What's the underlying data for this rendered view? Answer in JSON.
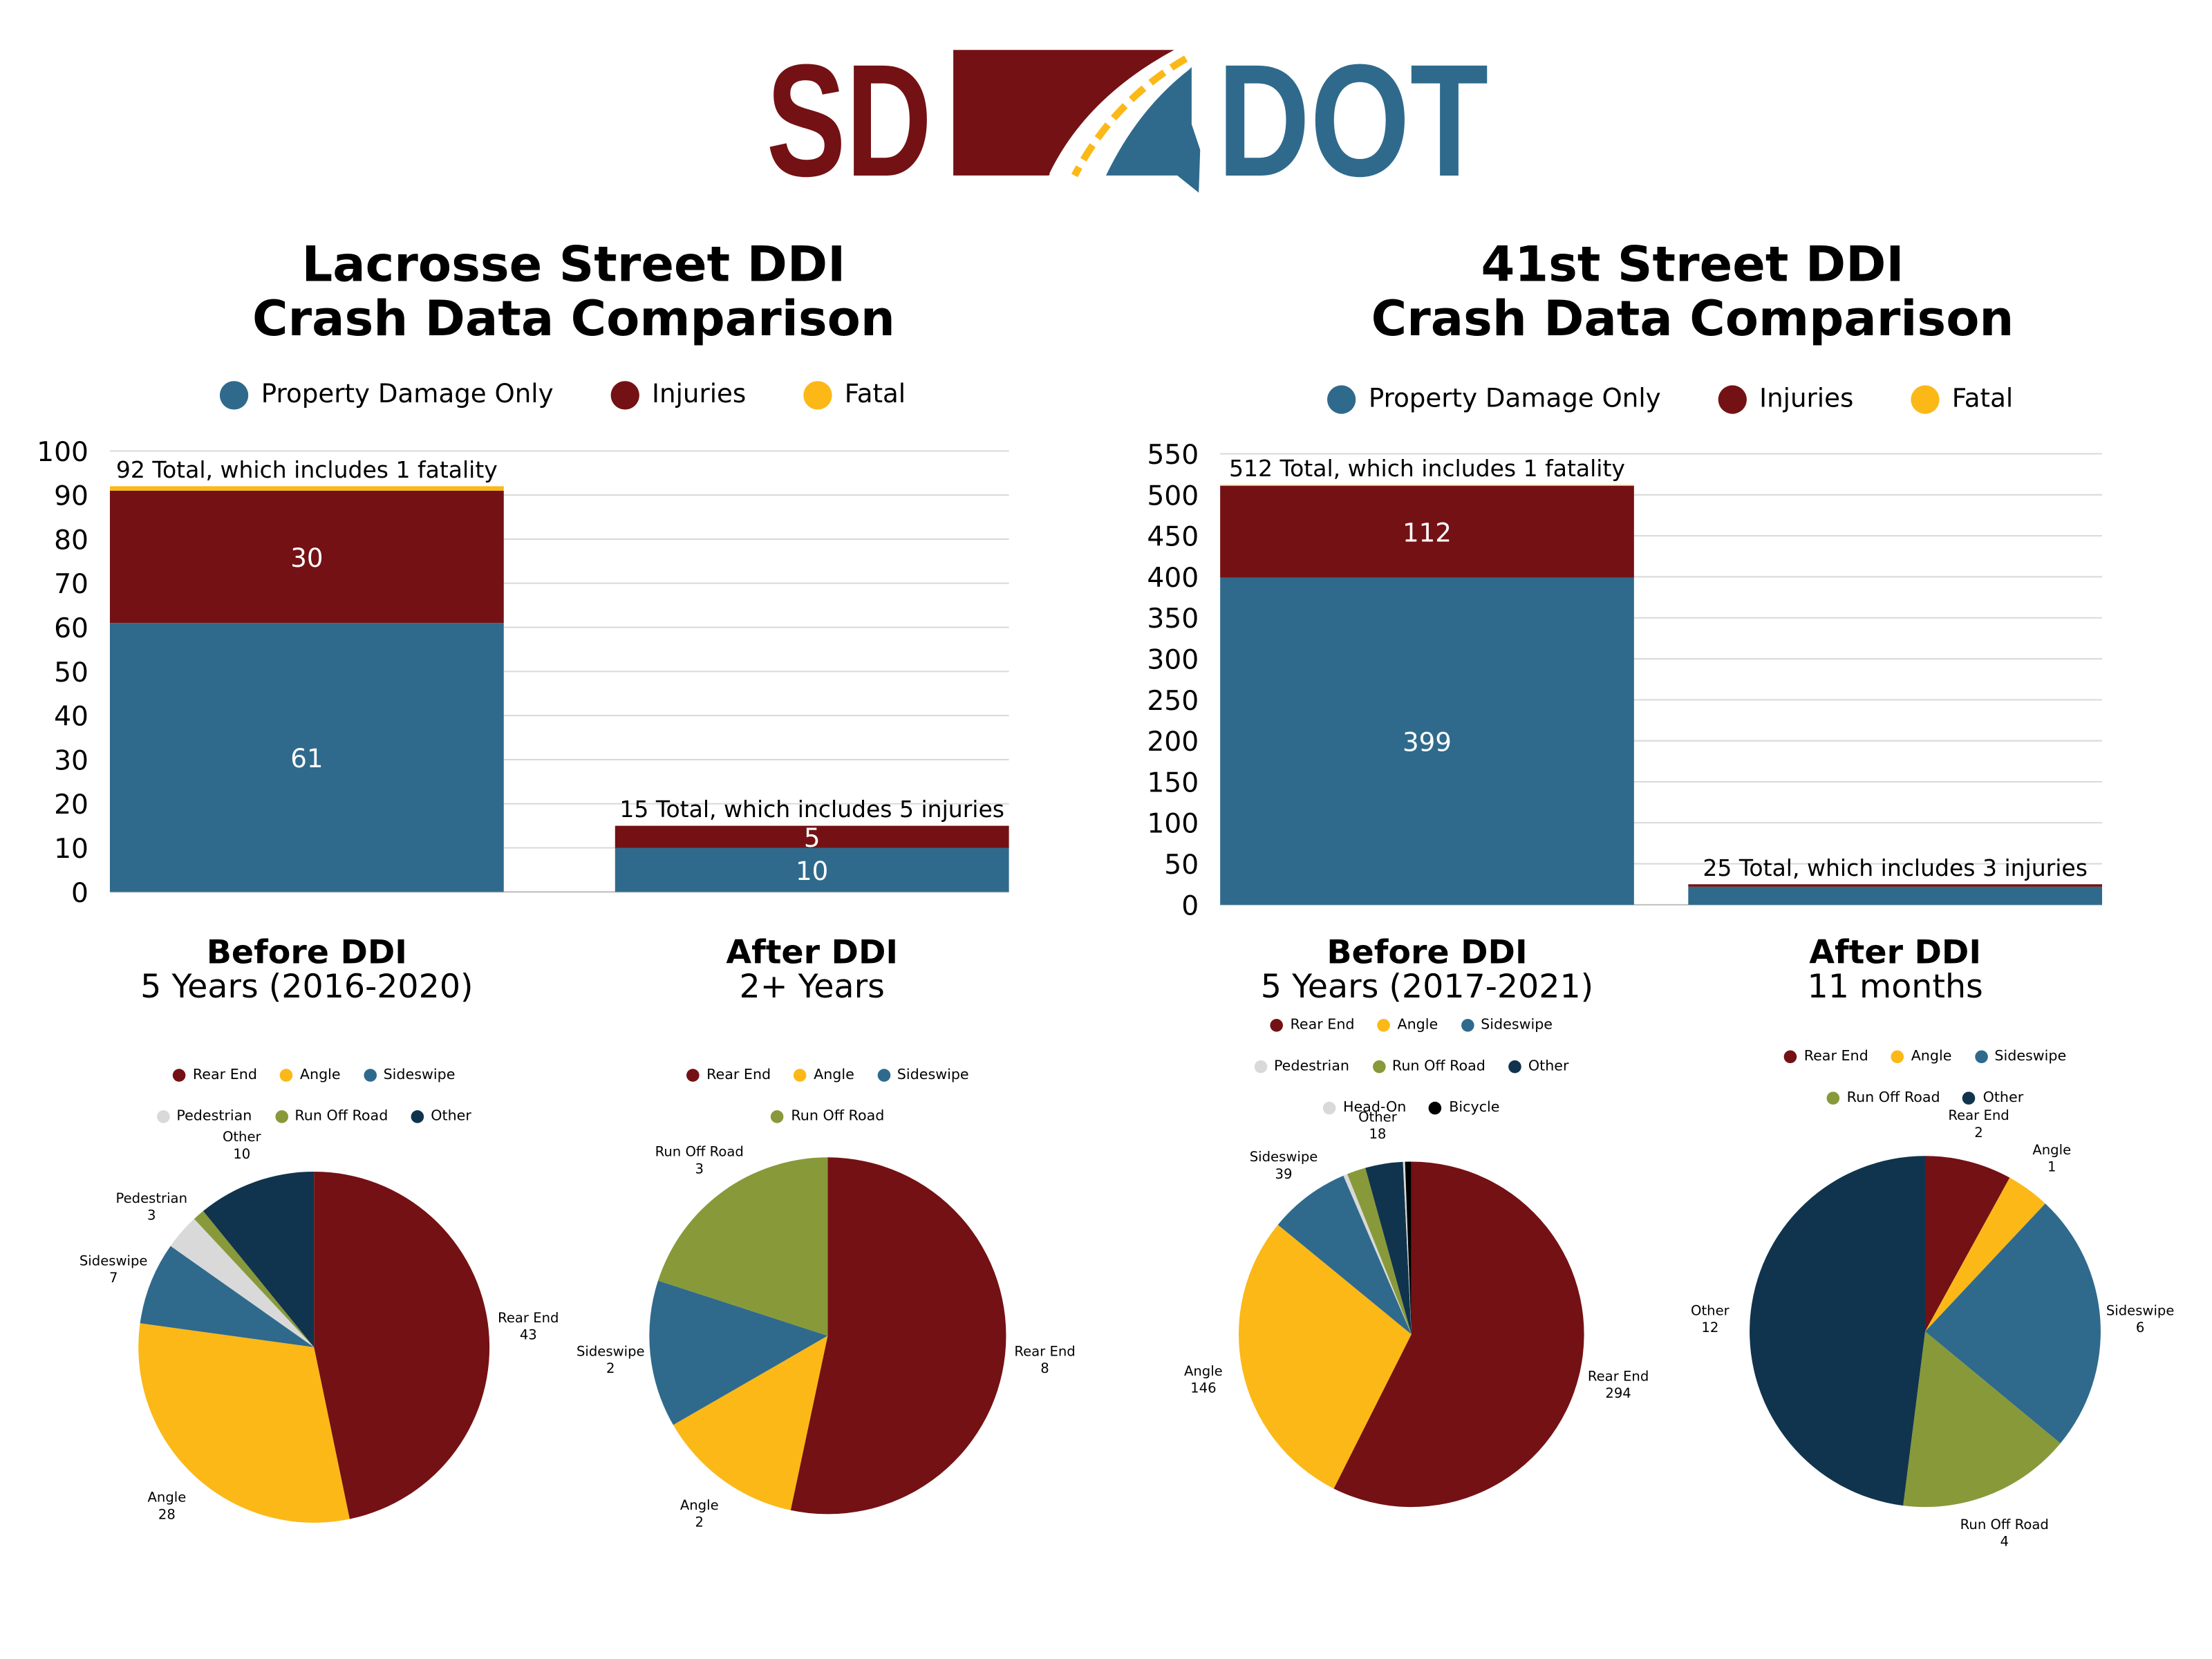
{
  "logo": {
    "text_left": "SD",
    "text_right": "DOT",
    "colors": {
      "maroon": "#741114",
      "blue": "#2F6A8C",
      "yellow": "#FBB817"
    }
  },
  "panels": [
    {
      "title_line1": "Lacrosse Street DDI",
      "title_line2": "Crash Data Comparison"
    },
    {
      "title_line1": "41st Street DDI",
      "title_line2": "Crash Data Comparison"
    }
  ],
  "series_legend": [
    {
      "name": "Property Damage Only",
      "color": "#2F6A8C"
    },
    {
      "name": "Injuries",
      "color": "#741114"
    },
    {
      "name": "Fatal",
      "color": "#FBB817"
    }
  ],
  "chart_data": [
    {
      "type": "bar",
      "stacked": true,
      "categories": [
        "Before DDI",
        "After DDI"
      ],
      "category_subtitles": [
        "5 Years (2016-2020)",
        "2+ Years"
      ],
      "series": [
        {
          "name": "Property Damage Only",
          "values": [
            61,
            10
          ],
          "color": "#2F6A8C"
        },
        {
          "name": "Injuries",
          "values": [
            30,
            5
          ],
          "color": "#741114"
        },
        {
          "name": "Fatal",
          "values": [
            1,
            0
          ],
          "color": "#FBB817"
        }
      ],
      "annotations": [
        "92 Total, which includes 1 fatality",
        "15 Total, which includes 5 injuries"
      ],
      "ylim": [
        0,
        100
      ],
      "ytick_step": 10,
      "grid": true,
      "legend": "top"
    },
    {
      "type": "bar",
      "stacked": true,
      "categories": [
        "Before DDI",
        "After DDI"
      ],
      "category_subtitles": [
        "5 Years (2017-2021)",
        "11 months"
      ],
      "series": [
        {
          "name": "Property Damage Only",
          "values": [
            399,
            22
          ],
          "color": "#2F6A8C"
        },
        {
          "name": "Injuries",
          "values": [
            112,
            3
          ],
          "color": "#741114"
        },
        {
          "name": "Fatal",
          "values": [
            1,
            0
          ],
          "color": "#FBB817"
        }
      ],
      "annotations": [
        "512 Total, which includes 1 fatality",
        "25 Total, which includes 3 injuries"
      ],
      "ylim": [
        0,
        550
      ],
      "ytick_step": 50,
      "grid": true,
      "legend": "top"
    },
    {
      "type": "pie",
      "legend": "top",
      "slices": [
        {
          "label": "Rear End",
          "value": 43,
          "color": "#741114",
          "show_label": true
        },
        {
          "label": "Angle",
          "value": 28,
          "color": "#FBB817",
          "show_label": true
        },
        {
          "label": "Sideswipe",
          "value": 7,
          "color": "#2F6A8C",
          "show_label": true
        },
        {
          "label": "Pedestrian",
          "value": 3,
          "color": "#D9D9D9",
          "show_label": true
        },
        {
          "label": "Run Off Road",
          "value": 1,
          "color": "#88993A",
          "show_label": false
        },
        {
          "label": "Other",
          "value": 10,
          "color": "#10344D",
          "show_label": true
        }
      ]
    },
    {
      "type": "pie",
      "legend": "top",
      "slices": [
        {
          "label": "Rear End",
          "value": 8,
          "color": "#741114",
          "show_label": true
        },
        {
          "label": "Angle",
          "value": 2,
          "color": "#FBB817",
          "show_label": true
        },
        {
          "label": "Sideswipe",
          "value": 2,
          "color": "#2F6A8C",
          "show_label": true
        },
        {
          "label": "Run Off Road",
          "value": 3,
          "color": "#88993A",
          "show_label": true
        }
      ]
    },
    {
      "type": "pie",
      "legend": "top",
      "slices": [
        {
          "label": "Rear End",
          "value": 294,
          "color": "#741114",
          "show_label": true
        },
        {
          "label": "Angle",
          "value": 146,
          "color": "#FBB817",
          "show_label": true
        },
        {
          "label": "Sideswipe",
          "value": 39,
          "color": "#2F6A8C",
          "show_label": true
        },
        {
          "label": "Pedestrian",
          "value": 2,
          "color": "#D9D9D9",
          "show_label": false
        },
        {
          "label": "Run Off Road",
          "value": 9,
          "color": "#88993A",
          "show_label": false
        },
        {
          "label": "Other",
          "value": 18,
          "color": "#10344D",
          "show_label": true
        },
        {
          "label": "Head-On",
          "value": 1,
          "color": "#D9D9D9",
          "show_label": false
        },
        {
          "label": "Bicycle",
          "value": 3,
          "color": "#000000",
          "show_label": false
        }
      ]
    },
    {
      "type": "pie",
      "legend": "top",
      "slices": [
        {
          "label": "Rear End",
          "value": 2,
          "color": "#741114",
          "show_label": true
        },
        {
          "label": "Angle",
          "value": 1,
          "color": "#FBB817",
          "show_label": true
        },
        {
          "label": "Sideswipe",
          "value": 6,
          "color": "#2F6A8C",
          "show_label": true
        },
        {
          "label": "Run Off Road",
          "value": 4,
          "color": "#88993A",
          "show_label": true
        },
        {
          "label": "Other",
          "value": 12,
          "color": "#10344D",
          "show_label": true
        }
      ]
    }
  ]
}
